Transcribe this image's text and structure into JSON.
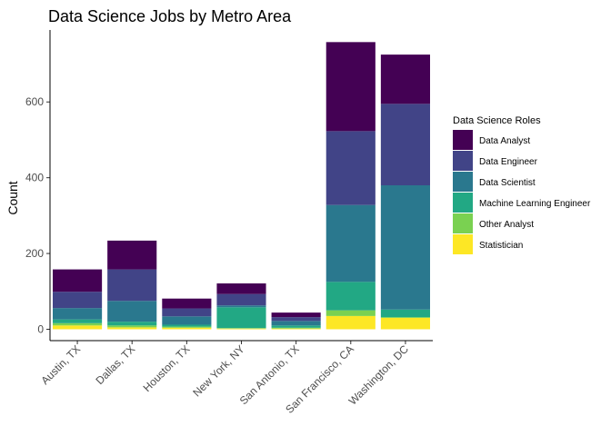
{
  "chart_data": {
    "type": "bar",
    "stacked": true,
    "title": "Data Science Jobs by Metro Area",
    "xlabel": "",
    "ylabel": "Count",
    "ylim": [
      -30,
      790
    ],
    "yticks": [
      0,
      200,
      400,
      600
    ],
    "grid": false,
    "legend_position": "right",
    "legend_title": "Data Science Roles",
    "categories": [
      "Austin, TX",
      "Dallas, TX",
      "Houston, TX",
      "New York, NY",
      "San Antonio, TX",
      "San Francisco, CA",
      "Washington, DC"
    ],
    "series": [
      {
        "name": "Statistician",
        "color": "#FDE725",
        "values": [
          10,
          5,
          4,
          2,
          2,
          35,
          30
        ]
      },
      {
        "name": "Other Analyst",
        "color": "#7AD151",
        "values": [
          6,
          5,
          3,
          1,
          2,
          15,
          2
        ]
      },
      {
        "name": "Machine Learning Engineer",
        "color": "#22A884",
        "values": [
          10,
          10,
          5,
          55,
          6,
          75,
          20
        ]
      },
      {
        "name": "Data Scientist",
        "color": "#2A788E",
        "values": [
          30,
          55,
          22,
          5,
          12,
          203,
          328
        ]
      },
      {
        "name": "Data Engineer",
        "color": "#414487",
        "values": [
          43,
          83,
          21,
          30,
          10,
          195,
          215
        ]
      },
      {
        "name": "Data Analyst",
        "color": "#440154",
        "values": [
          59,
          76,
          26,
          28,
          12,
          235,
          130
        ]
      }
    ],
    "legend_order": [
      "Data Analyst",
      "Data Engineer",
      "Data Scientist",
      "Machine Learning Engineer",
      "Other Analyst",
      "Statistician"
    ]
  }
}
